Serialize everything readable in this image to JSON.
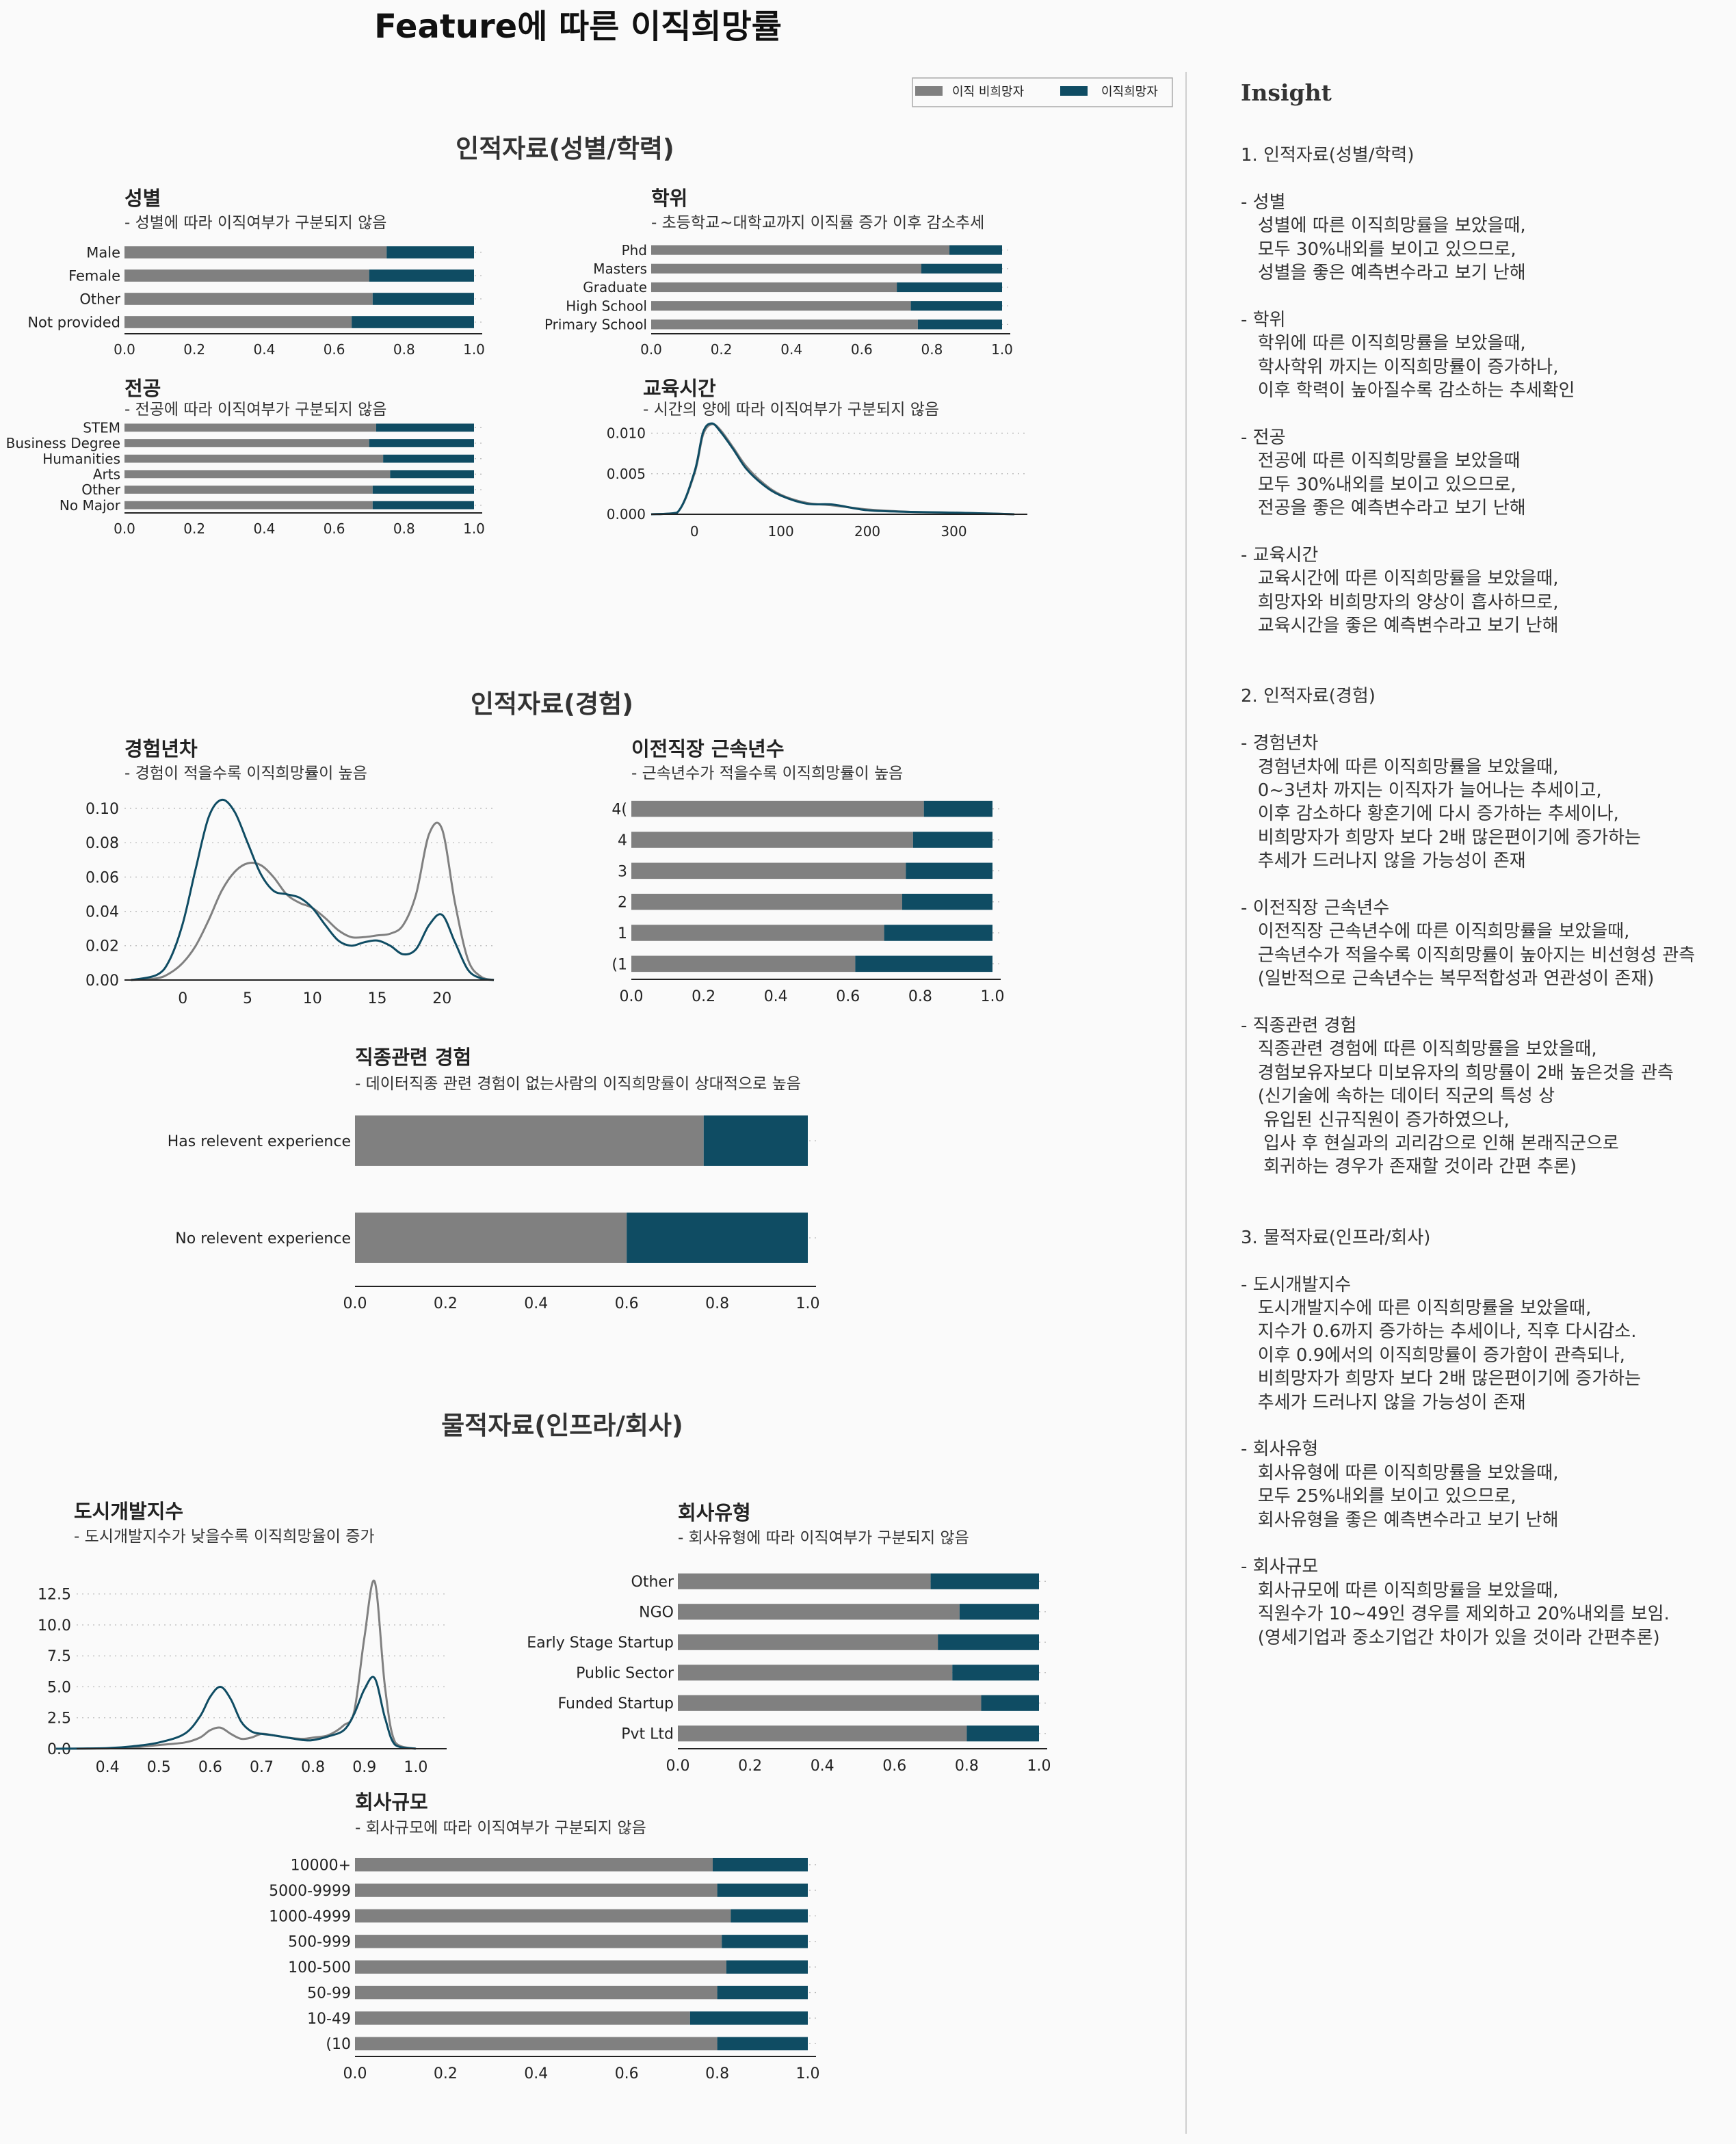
{
  "figure": {
    "title": "Feature에 따른 이직희망률",
    "legend": [
      "이직 비희망자",
      "이직희망자"
    ],
    "colors": {
      "non_hope": "#808080",
      "hope": "#0f4c63"
    }
  },
  "sections": [
    {
      "title": "인적자료(성별/학력)"
    },
    {
      "title": "인적자료(경험)"
    },
    {
      "title": "물적자료(인프라/회사)"
    }
  ],
  "chart_data": [
    {
      "id": "gender",
      "type": "bar",
      "orientation": "horizontal",
      "stacked": true,
      "title": "성별",
      "subtitle": "- 성별에 따라 이직여부가 구분되지 않음",
      "categories": [
        "Male",
        "Female",
        "Other",
        "Not provided"
      ],
      "series": [
        {
          "name": "이직 비희망자",
          "values": [
            0.75,
            0.7,
            0.71,
            0.65
          ]
        },
        {
          "name": "이직희망자",
          "values": [
            0.25,
            0.3,
            0.29,
            0.35
          ]
        }
      ],
      "xlim": [
        0,
        1
      ],
      "xticks": [
        "0.0",
        "0.2",
        "0.4",
        "0.6",
        "0.8",
        "1.0"
      ]
    },
    {
      "id": "degree",
      "type": "bar",
      "orientation": "horizontal",
      "stacked": true,
      "title": "학위",
      "subtitle": "- 초등학교~대학교까지 이직률 증가 이후 감소추세",
      "categories": [
        "Phd",
        "Masters",
        "Graduate",
        "High School",
        "Primary School"
      ],
      "series": [
        {
          "name": "이직 비희망자",
          "values": [
            0.85,
            0.77,
            0.7,
            0.74,
            0.76
          ]
        },
        {
          "name": "이직희망자",
          "values": [
            0.15,
            0.23,
            0.3,
            0.26,
            0.24
          ]
        }
      ],
      "xlim": [
        0,
        1
      ],
      "xticks": [
        "0.0",
        "0.2",
        "0.4",
        "0.6",
        "0.8",
        "1.0"
      ]
    },
    {
      "id": "major",
      "type": "bar",
      "orientation": "horizontal",
      "stacked": true,
      "title": "전공",
      "subtitle": "- 전공에 따라 이직여부가 구분되지 않음",
      "categories": [
        "STEM",
        "Business Degree",
        "Humanities",
        "Arts",
        "Other",
        "No Major"
      ],
      "series": [
        {
          "name": "이직 비희망자",
          "values": [
            0.72,
            0.7,
            0.74,
            0.76,
            0.71,
            0.71
          ]
        },
        {
          "name": "이직희망자",
          "values": [
            0.28,
            0.3,
            0.26,
            0.24,
            0.29,
            0.29
          ]
        }
      ],
      "xlim": [
        0,
        1
      ],
      "xticks": [
        "0.0",
        "0.2",
        "0.4",
        "0.6",
        "0.8",
        "1.0"
      ]
    },
    {
      "id": "training",
      "type": "line",
      "kind": "density",
      "title": "교육시간",
      "subtitle": "- 시간의 양에 따라 이직여부가 구분되지 않음",
      "x": [
        -50,
        -20,
        0,
        10,
        20,
        30,
        45,
        60,
        80,
        100,
        130,
        160,
        200,
        250,
        300,
        340,
        370
      ],
      "series": [
        {
          "name": "이직 비희망자",
          "values": [
            0,
            0.0002,
            0.005,
            0.0098,
            0.0111,
            0.0104,
            0.0082,
            0.0059,
            0.0038,
            0.0024,
            0.0014,
            0.0011,
            0.0006,
            0.0003,
            0.0002,
            0.0001,
            0
          ]
        },
        {
          "name": "이직희망자",
          "values": [
            0,
            0.0002,
            0.0052,
            0.0101,
            0.0112,
            0.0102,
            0.008,
            0.0056,
            0.0036,
            0.0023,
            0.0013,
            0.0012,
            0.0005,
            0.0003,
            0.0002,
            0.0001,
            0
          ]
        }
      ],
      "xlim": [
        -50,
        385
      ],
      "ylim": [
        0,
        0.0118
      ],
      "xticks": [
        0,
        100,
        200,
        300
      ],
      "yticks": [
        0,
        0.005,
        0.01
      ],
      "ytick_labels": [
        "0.000",
        "0.005",
        "0.010"
      ]
    },
    {
      "id": "experience",
      "type": "line",
      "kind": "density",
      "title": "경험년차",
      "subtitle": "- 경험이 적을수록 이직희망률이 높음",
      "x": [
        -4,
        -2,
        -1,
        0,
        1,
        2,
        3,
        4,
        5,
        6,
        7,
        8,
        9,
        10,
        11,
        12,
        13,
        14,
        15,
        16,
        17,
        18,
        19,
        20,
        21,
        22,
        23,
        24
      ],
      "series": [
        {
          "name": "이직 비희망자",
          "values": [
            0,
            0.001,
            0.004,
            0.01,
            0.02,
            0.035,
            0.052,
            0.063,
            0.068,
            0.067,
            0.06,
            0.05,
            0.045,
            0.042,
            0.036,
            0.029,
            0.025,
            0.025,
            0.026,
            0.027,
            0.032,
            0.05,
            0.085,
            0.088,
            0.045,
            0.012,
            0.002,
            0
          ]
        },
        {
          "name": "이직희망자",
          "values": [
            0,
            0.003,
            0.012,
            0.033,
            0.065,
            0.095,
            0.105,
            0.098,
            0.08,
            0.062,
            0.052,
            0.05,
            0.048,
            0.042,
            0.032,
            0.023,
            0.02,
            0.022,
            0.023,
            0.02,
            0.015,
            0.018,
            0.032,
            0.038,
            0.022,
            0.006,
            0.001,
            0
          ]
        }
      ],
      "xlim": [
        -4.5,
        24
      ],
      "ylim": [
        0,
        0.108
      ],
      "xticks": [
        0,
        5,
        10,
        15,
        20
      ],
      "yticks": [
        0,
        0.02,
        0.04,
        0.06,
        0.08,
        0.1
      ],
      "ytick_labels": [
        "0.00",
        "0.02",
        "0.04",
        "0.06",
        "0.08",
        "0.10"
      ]
    },
    {
      "id": "last_new_job",
      "type": "bar",
      "orientation": "horizontal",
      "stacked": true,
      "title": "이전직장 근속년수",
      "subtitle": "- 근속년수가 적을수록 이직희망률이 높음",
      "categories": [
        "4(",
        "4",
        "3",
        "2",
        "1",
        "(1"
      ],
      "series": [
        {
          "name": "이직 비희망자",
          "values": [
            0.81,
            0.78,
            0.76,
            0.75,
            0.7,
            0.62
          ]
        },
        {
          "name": "이직희망자",
          "values": [
            0.19,
            0.22,
            0.24,
            0.25,
            0.3,
            0.38
          ]
        }
      ],
      "xlim": [
        0,
        1
      ],
      "xticks": [
        "0.0",
        "0.2",
        "0.4",
        "0.6",
        "0.8",
        "1.0"
      ]
    },
    {
      "id": "relevent",
      "type": "bar",
      "orientation": "horizontal",
      "stacked": true,
      "title": "직종관련 경험",
      "subtitle": "- 데이터직종 관련 경험이 없는사람의 이직희망률이 상대적으로 높음",
      "categories": [
        "Has relevent experience",
        "No relevent experience"
      ],
      "series": [
        {
          "name": "이직 비희망자",
          "values": [
            0.77,
            0.6
          ]
        },
        {
          "name": "이직희망자",
          "values": [
            0.23,
            0.4
          ]
        }
      ],
      "xlim": [
        0,
        1
      ],
      "xticks": [
        "0.0",
        "0.2",
        "0.4",
        "0.6",
        "0.8",
        "1.0"
      ]
    },
    {
      "id": "city",
      "type": "line",
      "kind": "density",
      "title": "도시개발지수",
      "subtitle": "- 도시개발지수가 낮을수록 이직희망율이 증가",
      "x": [
        0.3,
        0.4,
        0.45,
        0.5,
        0.55,
        0.58,
        0.6,
        0.62,
        0.64,
        0.66,
        0.68,
        0.7,
        0.72,
        0.75,
        0.78,
        0.8,
        0.83,
        0.86,
        0.88,
        0.9,
        0.92,
        0.94,
        0.96,
        1.0
      ],
      "series": [
        {
          "name": "이직 비희망자",
          "values": [
            0,
            0.02,
            0.1,
            0.3,
            0.5,
            0.9,
            1.5,
            1.7,
            1.2,
            0.8,
            0.9,
            1.2,
            1.1,
            0.9,
            0.8,
            0.9,
            1.1,
            1.9,
            3.0,
            9.0,
            13.5,
            5.0,
            0.5,
            0
          ]
        },
        {
          "name": "이직희망자",
          "values": [
            0,
            0.05,
            0.2,
            0.5,
            1.2,
            2.6,
            4.2,
            5.0,
            4.0,
            2.2,
            1.4,
            1.2,
            1.1,
            0.9,
            0.7,
            0.7,
            1.0,
            1.5,
            2.8,
            4.8,
            5.7,
            2.5,
            0.3,
            0
          ]
        }
      ],
      "xlim": [
        0.34,
        1.06
      ],
      "ylim": [
        0,
        14.2
      ],
      "xticks": [
        0.4,
        0.5,
        0.6,
        0.7,
        0.8,
        0.9,
        1.0
      ],
      "yticks": [
        0,
        2.5,
        5,
        7.5,
        10,
        12.5
      ],
      "ytick_labels": [
        "0.0",
        "2.5",
        "5.0",
        "7.5",
        "10.0",
        "12.5"
      ],
      "xtick_labels": [
        "0.4",
        "0.5",
        "0.6",
        "0.7",
        "0.8",
        "0.9",
        "1.0"
      ]
    },
    {
      "id": "company_type",
      "type": "bar",
      "orientation": "horizontal",
      "stacked": true,
      "title": "회사유형",
      "subtitle": "- 회사유형에 따라 이직여부가 구분되지 않음",
      "categories": [
        "Other",
        "NGO",
        "Early Stage Startup",
        "Public Sector",
        "Funded Startup",
        "Pvt Ltd"
      ],
      "series": [
        {
          "name": "이직 비희망자",
          "values": [
            0.7,
            0.78,
            0.72,
            0.76,
            0.84,
            0.8
          ]
        },
        {
          "name": "이직희망자",
          "values": [
            0.3,
            0.22,
            0.28,
            0.24,
            0.16,
            0.2
          ]
        }
      ],
      "xlim": [
        0,
        1
      ],
      "xticks": [
        "0.0",
        "0.2",
        "0.4",
        "0.6",
        "0.8",
        "1.0"
      ]
    },
    {
      "id": "company_size",
      "type": "bar",
      "orientation": "horizontal",
      "stacked": true,
      "title": "회사규모",
      "subtitle": "- 회사규모에 따라 이직여부가 구분되지 않음",
      "categories": [
        "10000+",
        "5000-9999",
        "1000-4999",
        "500-999",
        "100-500",
        "50-99",
        "10-49",
        "(10"
      ],
      "series": [
        {
          "name": "이직 비희망자",
          "values": [
            0.79,
            0.8,
            0.83,
            0.81,
            0.82,
            0.8,
            0.74,
            0.8
          ]
        },
        {
          "name": "이직희망자",
          "values": [
            0.21,
            0.2,
            0.17,
            0.19,
            0.18,
            0.2,
            0.26,
            0.2
          ]
        }
      ],
      "xlim": [
        0,
        1
      ],
      "xticks": [
        "0.0",
        "0.2",
        "0.4",
        "0.6",
        "0.8",
        "1.0"
      ]
    }
  ],
  "insight": {
    "title": "Insight",
    "text": "1. 인적자료(성별/학력)\n\n- 성별\n   성별에 따른 이직희망률을 보았을때,\n   모두 30%내외를 보이고 있으므로,\n   성별을 좋은 예측변수라고 보기 난해\n\n- 학위\n   학위에 따른 이직희망률을 보았을때,\n   학사학위 까지는 이직희망률이 증가하나,\n   이후 학력이 높아질수록 감소하는 추세확인\n\n- 전공\n   전공에 따른 이직희망률을 보았을때\n   모두 30%내외를 보이고 있으므로,\n   전공을 좋은 예측변수라고 보기 난해\n\n- 교육시간\n   교육시간에 따른 이직희망률을 보았을때,\n   희망자와 비희망자의 양상이 흡사하므로,\n   교육시간을 좋은 예측변수라고 보기 난해\n\n\n2. 인적자료(경험)\n\n- 경험년차\n   경험년차에 따른 이직희망률을 보았을때,\n   0~3년차 까지는 이직자가 늘어나는 추세이고,\n   이후 감소하다 황혼기에 다시 증가하는 추세이나,\n   비희망자가 희망자 보다 2배 많은편이기에 증가하는\n   추세가 드러나지 않을 가능성이 존재\n\n- 이전직장 근속년수\n   이전직장 근속년수에 따른 이직희망률을 보았을때,\n   근속년수가 적을수록 이직희망률이 높아지는 비선형성 관측\n   (일반적으로 근속년수는 복무적합성과 연관성이 존재)\n\n- 직종관련 경험\n   직종관련 경험에 따른 이직희망률을 보았을때,\n   경험보유자보다 미보유자의 희망률이 2배 높은것을 관측\n   (신기술에 속하는 데이터 직군의 특성 상\n    유입된 신규직원이 증가하였으나,\n    입사 후 현실과의 괴리감으로 인해 본래직군으로\n    회귀하는 경우가 존재할 것이라 간편 추론)\n\n\n3. 물적자료(인프라/회사)\n\n- 도시개발지수\n   도시개발지수에 따른 이직희망률을 보았을때,\n   지수가 0.6까지 증가하는 추세이나, 직후 다시감소.\n   이후 0.9에서의 이직희망률이 증가함이 관측되나,\n   비희망자가 희망자 보다 2배 많은편이기에 증가하는\n   추세가 드러나지 않을 가능성이 존재\n\n- 회사유형\n   회사유형에 따른 이직희망률을 보았을때,\n   모두 25%내외를 보이고 있으므로,\n   회사유형을 좋은 예측변수라고 보기 난해\n\n- 회사규모\n   회사규모에 따른 이직희망률을 보았을때,\n   직원수가 10~49인 경우를 제외하고 20%내외를 보임.\n   (영세기업과 중소기업간 차이가 있을 것이라 간편추론)"
  }
}
